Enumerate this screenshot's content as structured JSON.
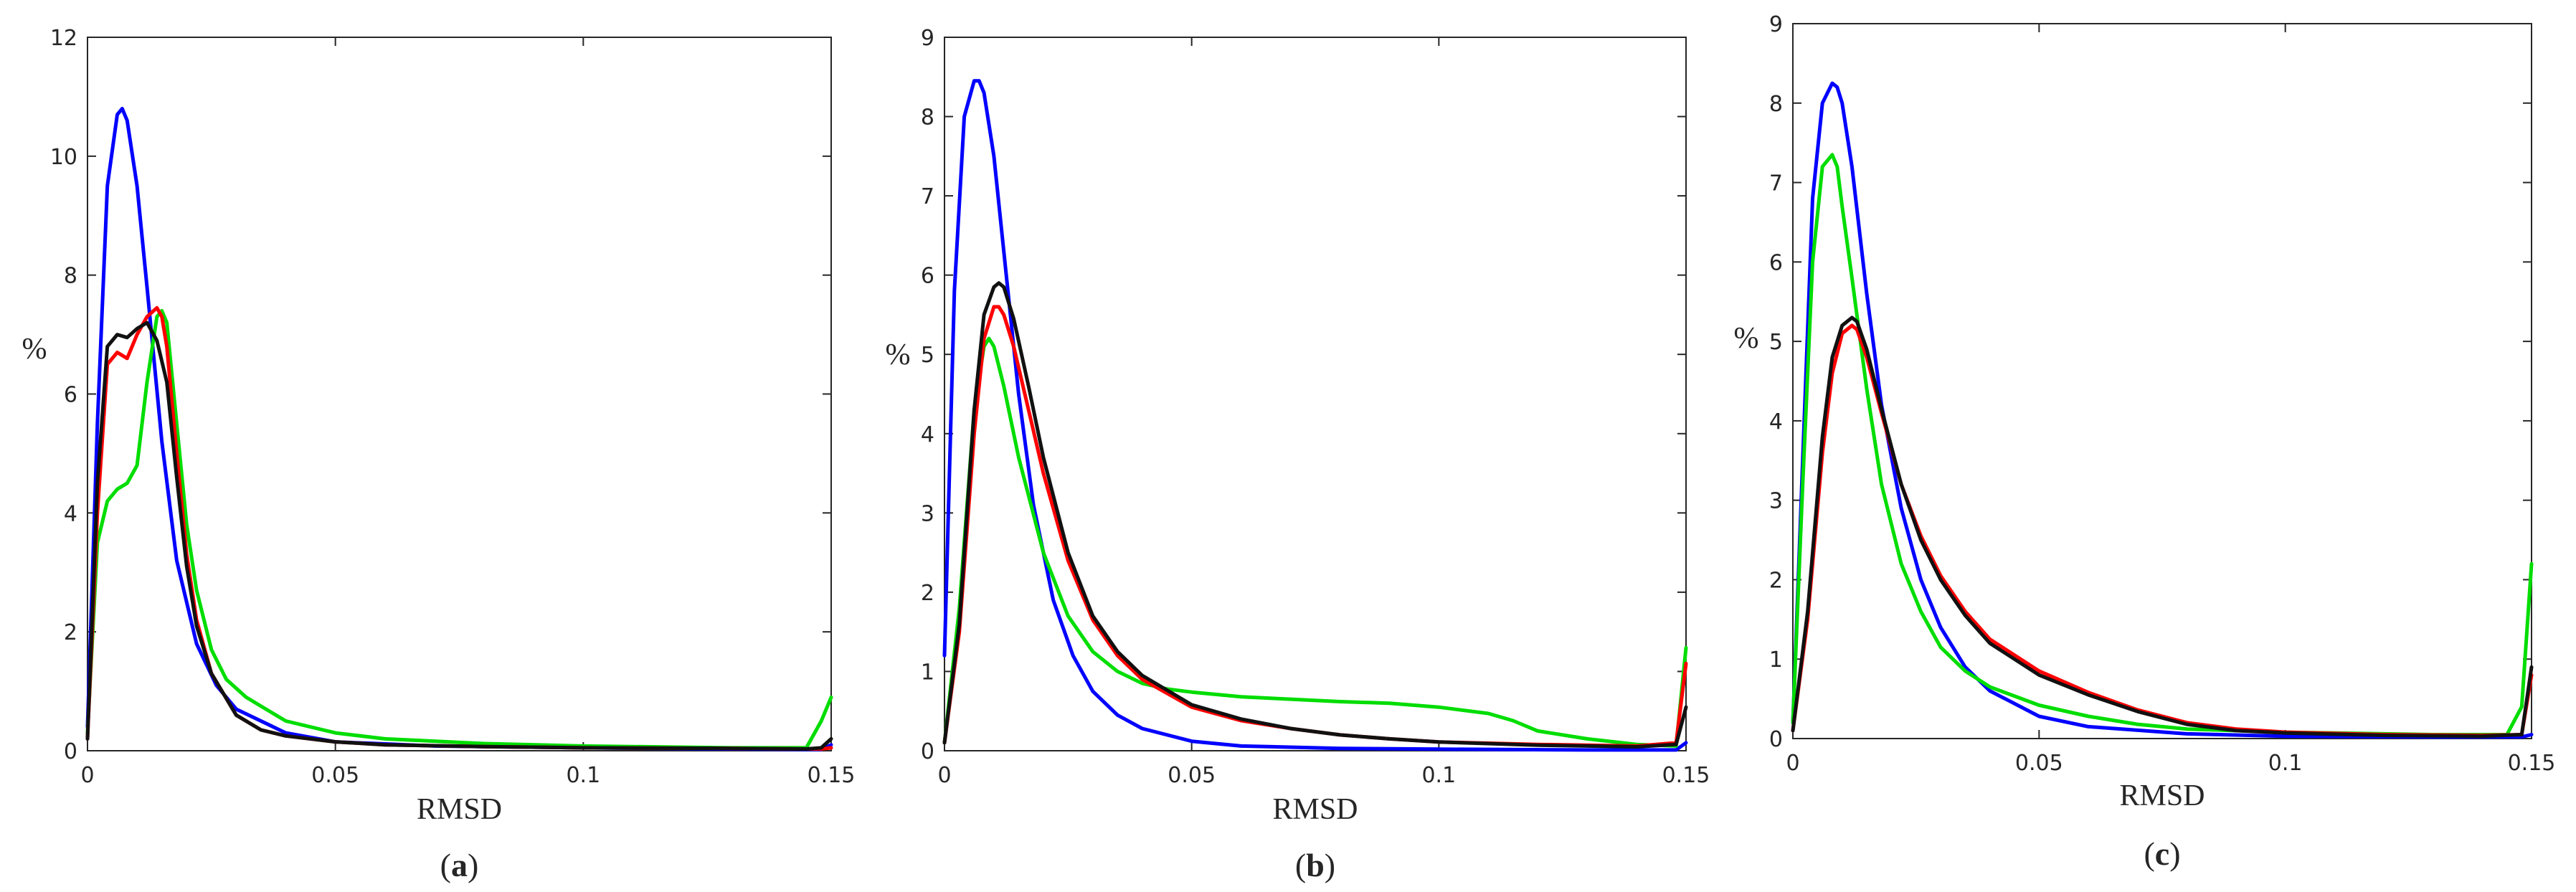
{
  "chart_data": [
    {
      "type": "line",
      "panel_label": "a",
      "xlabel": "RMSD",
      "ylabel": "%",
      "xlim": [
        0,
        0.15
      ],
      "ylim": [
        0,
        12
      ],
      "xticks": [
        0,
        0.05,
        0.1,
        0.15
      ],
      "xtick_labels": [
        "0",
        "0.05",
        "0.1",
        "0.15"
      ],
      "yticks": [
        0,
        2,
        4,
        6,
        8,
        10,
        12
      ],
      "ytick_labels": [
        "0",
        "2",
        "4",
        "6",
        "8",
        "10",
        "12"
      ],
      "grid": false,
      "legend": "none",
      "series": [
        {
          "color": "#0000ff",
          "x": [
            0,
            0.002,
            0.004,
            0.006,
            0.007,
            0.008,
            0.01,
            0.012,
            0.015,
            0.018,
            0.022,
            0.026,
            0.03,
            0.04,
            0.05,
            0.07,
            0.1,
            0.13,
            0.145,
            0.148,
            0.15
          ],
          "y": [
            0.4,
            5.5,
            9.5,
            10.7,
            10.8,
            10.6,
            9.5,
            7.8,
            5.2,
            3.2,
            1.8,
            1.1,
            0.7,
            0.3,
            0.15,
            0.08,
            0.05,
            0.03,
            0.02,
            0.02,
            0.1
          ]
        },
        {
          "color": "#00dd00",
          "x": [
            0,
            0.002,
            0.004,
            0.006,
            0.008,
            0.01,
            0.012,
            0.014,
            0.015,
            0.016,
            0.018,
            0.02,
            0.022,
            0.025,
            0.028,
            0.032,
            0.036,
            0.04,
            0.05,
            0.06,
            0.08,
            0.1,
            0.13,
            0.145,
            0.148,
            0.15
          ],
          "y": [
            0.3,
            3.5,
            4.2,
            4.4,
            4.5,
            4.8,
            6.2,
            7.3,
            7.4,
            7.2,
            5.5,
            3.8,
            2.7,
            1.7,
            1.2,
            0.9,
            0.7,
            0.5,
            0.3,
            0.2,
            0.12,
            0.08,
            0.05,
            0.05,
            0.5,
            0.9
          ]
        },
        {
          "color": "#ff0000",
          "x": [
            0,
            0.002,
            0.004,
            0.006,
            0.008,
            0.01,
            0.012,
            0.014,
            0.015,
            0.016,
            0.018,
            0.02,
            0.022,
            0.025,
            0.03,
            0.035,
            0.04,
            0.05,
            0.06,
            0.08,
            0.1,
            0.13,
            0.145,
            0.148,
            0.15
          ],
          "y": [
            0.2,
            4.0,
            6.5,
            6.7,
            6.6,
            7.0,
            7.3,
            7.45,
            7.3,
            6.8,
            5.0,
            3.3,
            2.2,
            1.3,
            0.6,
            0.35,
            0.25,
            0.15,
            0.1,
            0.07,
            0.05,
            0.04,
            0.03,
            0.03,
            0.05
          ]
        },
        {
          "color": "#111111",
          "x": [
            0,
            0.002,
            0.004,
            0.006,
            0.008,
            0.01,
            0.012,
            0.014,
            0.016,
            0.018,
            0.02,
            0.022,
            0.025,
            0.03,
            0.035,
            0.04,
            0.05,
            0.06,
            0.08,
            0.1,
            0.13,
            0.145,
            0.148,
            0.15
          ],
          "y": [
            0.2,
            4.5,
            6.8,
            7.0,
            6.95,
            7.1,
            7.2,
            6.9,
            6.2,
            4.6,
            3.1,
            2.1,
            1.3,
            0.6,
            0.35,
            0.25,
            0.15,
            0.1,
            0.07,
            0.05,
            0.04,
            0.03,
            0.05,
            0.2
          ]
        }
      ]
    },
    {
      "type": "line",
      "panel_label": "b",
      "xlabel": "RMSD",
      "ylabel": "%",
      "xlim": [
        0,
        0.15
      ],
      "ylim": [
        0,
        9
      ],
      "xticks": [
        0,
        0.05,
        0.1,
        0.15
      ],
      "xtick_labels": [
        "0",
        "0.05",
        "0.1",
        "0.15"
      ],
      "yticks": [
        0,
        1,
        2,
        3,
        4,
        5,
        6,
        7,
        8,
        9
      ],
      "ytick_labels": [
        "0",
        "1",
        "2",
        "3",
        "4",
        "5",
        "6",
        "7",
        "8",
        "9"
      ],
      "grid": false,
      "legend": "none",
      "series": [
        {
          "color": "#0000ff",
          "x": [
            0,
            0.002,
            0.004,
            0.006,
            0.007,
            0.008,
            0.01,
            0.012,
            0.015,
            0.018,
            0.022,
            0.026,
            0.03,
            0.035,
            0.04,
            0.05,
            0.06,
            0.08,
            0.1,
            0.13,
            0.148,
            0.15
          ],
          "y": [
            1.2,
            5.8,
            8.0,
            8.45,
            8.45,
            8.3,
            7.5,
            6.3,
            4.5,
            3.1,
            1.9,
            1.2,
            0.75,
            0.45,
            0.28,
            0.12,
            0.06,
            0.03,
            0.02,
            0.01,
            0.01,
            0.1
          ]
        },
        {
          "color": "#00dd00",
          "x": [
            0,
            0.003,
            0.006,
            0.008,
            0.009,
            0.01,
            0.012,
            0.015,
            0.02,
            0.025,
            0.03,
            0.035,
            0.04,
            0.045,
            0.05,
            0.06,
            0.07,
            0.08,
            0.09,
            0.1,
            0.11,
            0.115,
            0.12,
            0.13,
            0.14,
            0.148,
            0.15
          ],
          "y": [
            0.1,
            1.8,
            4.3,
            5.1,
            5.2,
            5.1,
            4.6,
            3.7,
            2.5,
            1.7,
            1.25,
            1.0,
            0.85,
            0.78,
            0.74,
            0.68,
            0.65,
            0.62,
            0.6,
            0.55,
            0.47,
            0.38,
            0.25,
            0.15,
            0.08,
            0.06,
            1.3
          ]
        },
        {
          "color": "#ff0000",
          "x": [
            0,
            0.003,
            0.006,
            0.008,
            0.01,
            0.011,
            0.012,
            0.014,
            0.017,
            0.02,
            0.025,
            0.03,
            0.035,
            0.04,
            0.05,
            0.06,
            0.07,
            0.08,
            0.09,
            0.1,
            0.12,
            0.14,
            0.148,
            0.15
          ],
          "y": [
            0.1,
            1.5,
            4.0,
            5.2,
            5.6,
            5.6,
            5.5,
            5.1,
            4.3,
            3.5,
            2.4,
            1.65,
            1.2,
            0.9,
            0.55,
            0.38,
            0.28,
            0.2,
            0.15,
            0.11,
            0.08,
            0.06,
            0.1,
            1.1
          ]
        },
        {
          "color": "#111111",
          "x": [
            0,
            0.003,
            0.006,
            0.008,
            0.01,
            0.011,
            0.012,
            0.014,
            0.017,
            0.02,
            0.025,
            0.03,
            0.035,
            0.04,
            0.05,
            0.06,
            0.07,
            0.08,
            0.09,
            0.1,
            0.12,
            0.14,
            0.148,
            0.15
          ],
          "y": [
            0.1,
            1.6,
            4.3,
            5.5,
            5.85,
            5.9,
            5.85,
            5.45,
            4.6,
            3.7,
            2.5,
            1.7,
            1.25,
            0.95,
            0.58,
            0.4,
            0.28,
            0.2,
            0.15,
            0.11,
            0.07,
            0.05,
            0.08,
            0.55
          ]
        }
      ]
    },
    {
      "type": "line",
      "panel_label": "c",
      "xlabel": "RMSD",
      "ylabel": "%",
      "xlim": [
        0,
        0.15
      ],
      "ylim": [
        0,
        9
      ],
      "xticks": [
        0,
        0.05,
        0.1,
        0.15
      ],
      "xtick_labels": [
        "0",
        "0.05",
        "0.1",
        "0.15"
      ],
      "yticks": [
        0,
        1,
        2,
        3,
        4,
        5,
        6,
        7,
        8,
        9
      ],
      "ytick_labels": [
        "0",
        "1",
        "2",
        "3",
        "4",
        "5",
        "6",
        "7",
        "8",
        "9"
      ],
      "grid": false,
      "legend": "none",
      "series": [
        {
          "color": "#0000ff",
          "x": [
            0,
            0.002,
            0.004,
            0.006,
            0.008,
            0.009,
            0.01,
            0.012,
            0.015,
            0.018,
            0.022,
            0.026,
            0.03,
            0.035,
            0.04,
            0.05,
            0.06,
            0.08,
            0.1,
            0.13,
            0.148,
            0.15
          ],
          "y": [
            0.2,
            3.5,
            6.8,
            8.0,
            8.25,
            8.2,
            8.0,
            7.2,
            5.6,
            4.2,
            2.9,
            2.0,
            1.4,
            0.9,
            0.6,
            0.28,
            0.15,
            0.06,
            0.03,
            0.02,
            0.02,
            0.05
          ]
        },
        {
          "color": "#00dd00",
          "x": [
            0,
            0.002,
            0.004,
            0.006,
            0.008,
            0.009,
            0.01,
            0.012,
            0.015,
            0.018,
            0.022,
            0.026,
            0.03,
            0.035,
            0.04,
            0.05,
            0.06,
            0.07,
            0.08,
            0.1,
            0.13,
            0.145,
            0.148,
            0.15
          ],
          "y": [
            0.2,
            3.2,
            6.0,
            7.2,
            7.35,
            7.2,
            6.7,
            5.8,
            4.4,
            3.2,
            2.2,
            1.6,
            1.15,
            0.85,
            0.65,
            0.42,
            0.28,
            0.18,
            0.12,
            0.08,
            0.05,
            0.05,
            0.4,
            2.2
          ]
        },
        {
          "color": "#ff0000",
          "x": [
            0,
            0.003,
            0.006,
            0.008,
            0.01,
            0.012,
            0.013,
            0.015,
            0.018,
            0.022,
            0.026,
            0.03,
            0.035,
            0.04,
            0.05,
            0.06,
            0.07,
            0.08,
            0.09,
            0.1,
            0.12,
            0.14,
            0.148,
            0.15
          ],
          "y": [
            0.1,
            1.5,
            3.6,
            4.6,
            5.1,
            5.2,
            5.15,
            4.8,
            4.1,
            3.2,
            2.55,
            2.05,
            1.6,
            1.25,
            0.85,
            0.58,
            0.36,
            0.2,
            0.12,
            0.08,
            0.05,
            0.04,
            0.05,
            0.8
          ]
        },
        {
          "color": "#111111",
          "x": [
            0,
            0.003,
            0.006,
            0.008,
            0.01,
            0.012,
            0.013,
            0.015,
            0.018,
            0.022,
            0.026,
            0.03,
            0.035,
            0.04,
            0.05,
            0.06,
            0.07,
            0.08,
            0.09,
            0.1,
            0.12,
            0.14,
            0.148,
            0.15
          ],
          "y": [
            0.1,
            1.6,
            3.8,
            4.8,
            5.2,
            5.3,
            5.25,
            4.9,
            4.15,
            3.2,
            2.5,
            2.0,
            1.55,
            1.2,
            0.8,
            0.55,
            0.34,
            0.18,
            0.1,
            0.07,
            0.04,
            0.03,
            0.05,
            0.9
          ]
        }
      ]
    }
  ]
}
